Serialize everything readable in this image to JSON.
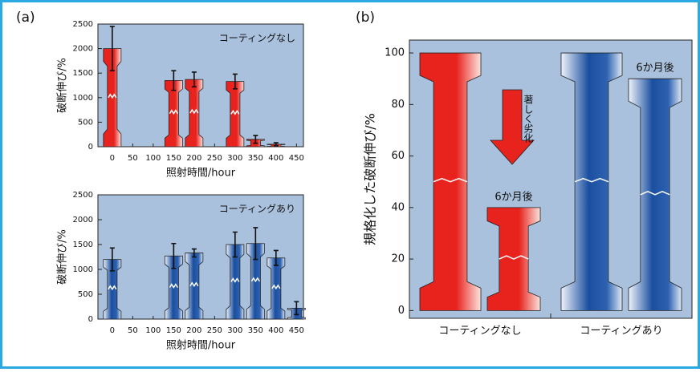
{
  "chart_data": [
    {
      "type": "bar",
      "panel": "(a)",
      "annotation": "コーティングなし",
      "x_label": "照射時間/hour",
      "y_label": "破断伸び/%",
      "x": [
        0,
        150,
        200,
        300,
        350,
        400
      ],
      "values": [
        2000,
        1350,
        1370,
        1330,
        150,
        50
      ],
      "errors": [
        450,
        200,
        150,
        150,
        80,
        30
      ],
      "color": "#e8231e",
      "xlim": [
        -35,
        467
      ],
      "xticks": [
        0,
        50,
        100,
        150,
        200,
        250,
        300,
        350,
        400,
        450
      ],
      "ylim": [
        0,
        2500
      ],
      "yticks": [
        0,
        500,
        1000,
        1500,
        2000,
        2500
      ]
    },
    {
      "type": "bar",
      "annotation": "コーティングあり",
      "x_label": "照射時間/hour",
      "y_label": "破断伸び/%",
      "x": [
        0,
        150,
        200,
        300,
        350,
        400,
        450
      ],
      "values": [
        1200,
        1270,
        1330,
        1500,
        1520,
        1230,
        220
      ],
      "errors": [
        230,
        250,
        80,
        250,
        320,
        150,
        130
      ],
      "color": "#1a4fa0",
      "xlim": [
        -35,
        467
      ],
      "xticks": [
        0,
        50,
        100,
        150,
        200,
        250,
        300,
        350,
        400,
        450
      ],
      "ylim": [
        0,
        2500
      ],
      "yticks": [
        0,
        500,
        1000,
        1500,
        2000,
        2500
      ]
    },
    {
      "type": "bar",
      "panel": "(b)",
      "annotation": "著しく劣化",
      "y_label": "規格化した破断伸び/%",
      "categories": [
        "コーティングなし",
        "コーティングあり"
      ],
      "colors": [
        "#e8231e",
        "#1a4fa0"
      ],
      "series": [
        {
          "values": [
            100,
            100
          ]
        },
        {
          "values": [
            40,
            90
          ],
          "value_labels": [
            "6か月後",
            "6か月後"
          ]
        }
      ],
      "ylim": [
        -3,
        105
      ],
      "yticks": [
        0,
        20,
        40,
        60,
        80,
        100
      ]
    }
  ]
}
